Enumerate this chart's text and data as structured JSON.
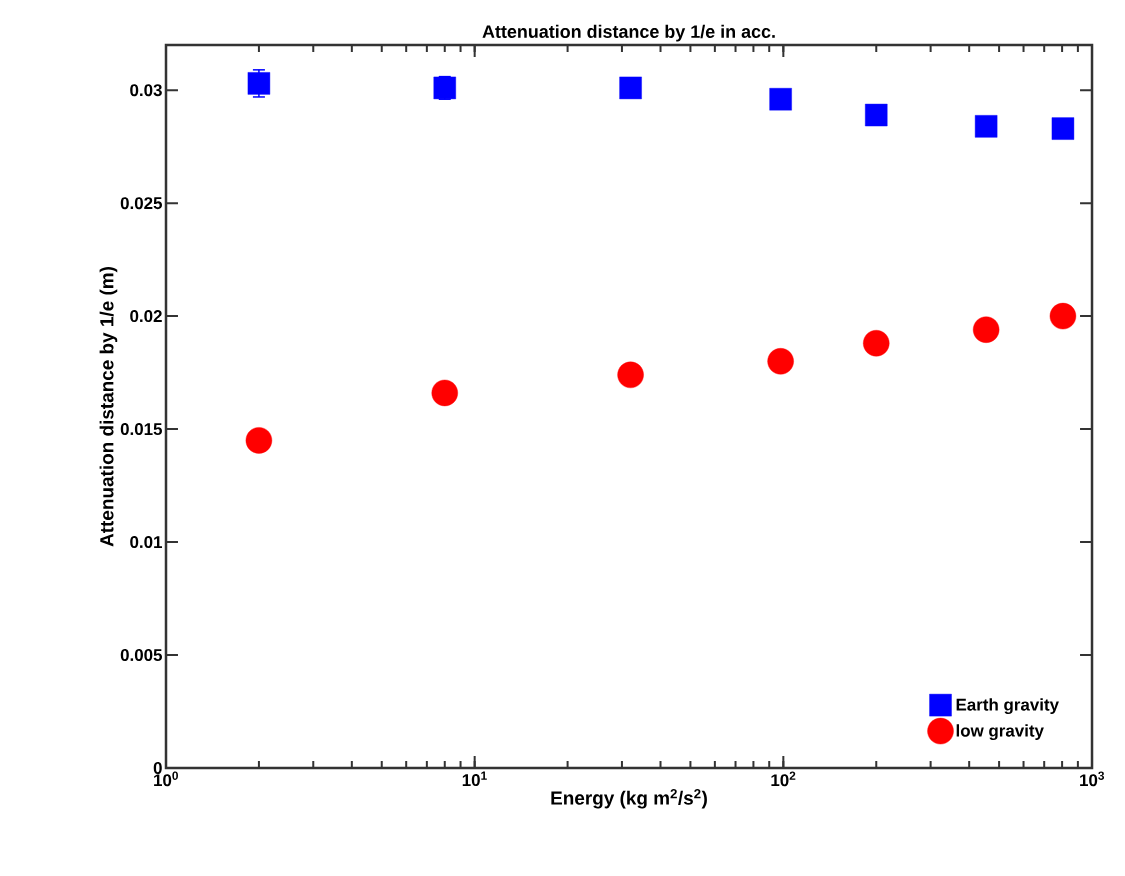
{
  "chart_data": {
    "type": "scatter",
    "title": "Attenuation distance by 1/e in acc.",
    "xlabel": "Energy (kg m$^{2}$/s$^{2}$)",
    "ylabel": "Attenuation distance by 1/e (m)",
    "x": [
      2,
      8,
      32,
      98,
      200,
      454,
      805
    ],
    "series": [
      {
        "name": "Earth gravity",
        "color": "#0000ff",
        "marker": "square",
        "values": [
          0.0303,
          0.0301,
          0.0301,
          0.0296,
          0.0289,
          0.0284,
          0.0283
        ],
        "errors": [
          0.0006,
          0.0005,
          null,
          null,
          null,
          null,
          null
        ]
      },
      {
        "name": "low gravity",
        "color": "#ff0000",
        "marker": "circle",
        "values": [
          0.0145,
          0.0166,
          0.0174,
          0.018,
          0.0188,
          0.0194,
          0.02
        ]
      }
    ],
    "log": "x",
    "xlim": [
      1,
      1000
    ],
    "ylim": [
      0,
      0.032
    ],
    "xticks": [
      {
        "value": 1,
        "label": "10$^{0}$"
      },
      {
        "value": 10,
        "label": "10$^{1}$"
      },
      {
        "value": 100,
        "label": "10$^{2}$"
      },
      {
        "value": 1000,
        "label": "10$^{3}$"
      }
    ],
    "yticks": [
      0,
      0.005,
      0.01,
      0.015,
      0.02,
      0.025,
      0.03
    ],
    "grid": false,
    "legend": "bottom right"
  }
}
